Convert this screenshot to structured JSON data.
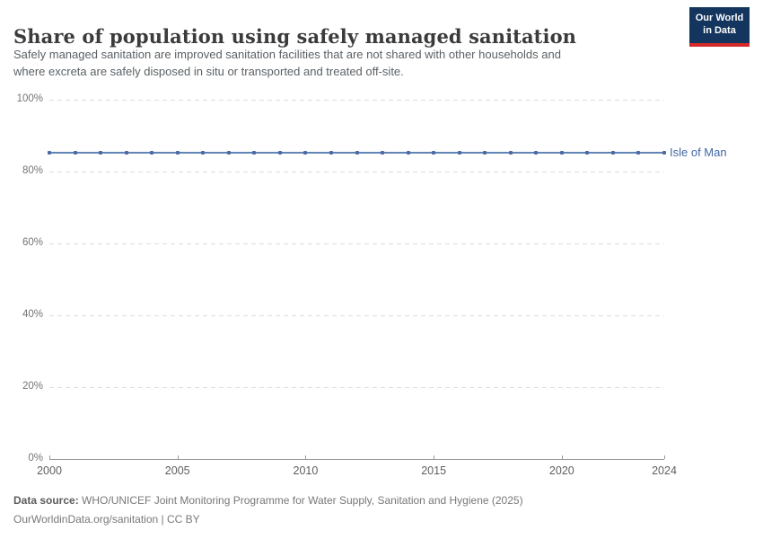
{
  "header": {
    "title": "Share of population using safely managed sanitation",
    "subtitle_line1": "Safely managed sanitation are improved sanitation facilities that are not shared with other households and",
    "subtitle_line2": "where excreta are safely disposed in situ or transported and treated off-site.",
    "logo_line1": "Our World",
    "logo_line2": "in Data"
  },
  "chart_data": {
    "type": "line",
    "title": "Share of population using safely managed sanitation",
    "xlabel": "",
    "ylabel": "",
    "xlim": [
      2000,
      2024
    ],
    "ylim": [
      0,
      100
    ],
    "grid": "horizontal-dashed",
    "legend_position": "end-of-line-label",
    "y_ticks": [
      {
        "value": 0,
        "label": "0%"
      },
      {
        "value": 20,
        "label": "20%"
      },
      {
        "value": 40,
        "label": "40%"
      },
      {
        "value": 60,
        "label": "60%"
      },
      {
        "value": 80,
        "label": "80%"
      },
      {
        "value": 100,
        "label": "100%"
      }
    ],
    "x_ticks": [
      {
        "value": 2000,
        "label": "2000"
      },
      {
        "value": 2005,
        "label": "2005"
      },
      {
        "value": 2010,
        "label": "2010"
      },
      {
        "value": 2015,
        "label": "2015"
      },
      {
        "value": 2020,
        "label": "2020"
      },
      {
        "value": 2024,
        "label": "2024"
      }
    ],
    "series": [
      {
        "name": "Isle of Man",
        "line_color": "#6384b4",
        "marker_color": "#4a6aa0",
        "label_color": "#4268a4",
        "x": [
          2000,
          2001,
          2002,
          2003,
          2004,
          2005,
          2006,
          2007,
          2008,
          2009,
          2010,
          2011,
          2012,
          2013,
          2014,
          2015,
          2016,
          2017,
          2018,
          2019,
          2020,
          2021,
          2022,
          2023,
          2024
        ],
        "values": [
          85.2,
          85.2,
          85.2,
          85.2,
          85.2,
          85.2,
          85.2,
          85.2,
          85.2,
          85.2,
          85.2,
          85.2,
          85.2,
          85.2,
          85.2,
          85.2,
          85.2,
          85.2,
          85.2,
          85.2,
          85.2,
          85.2,
          85.2,
          85.2,
          85.2
        ]
      }
    ]
  },
  "footer": {
    "data_source_label": "Data source:",
    "data_source_text": " WHO/UNICEF Joint Monitoring Programme for Water Supply, Sanitation and Hygiene (2025)",
    "license_line": "OurWorldinData.org/sanitation | CC BY"
  }
}
